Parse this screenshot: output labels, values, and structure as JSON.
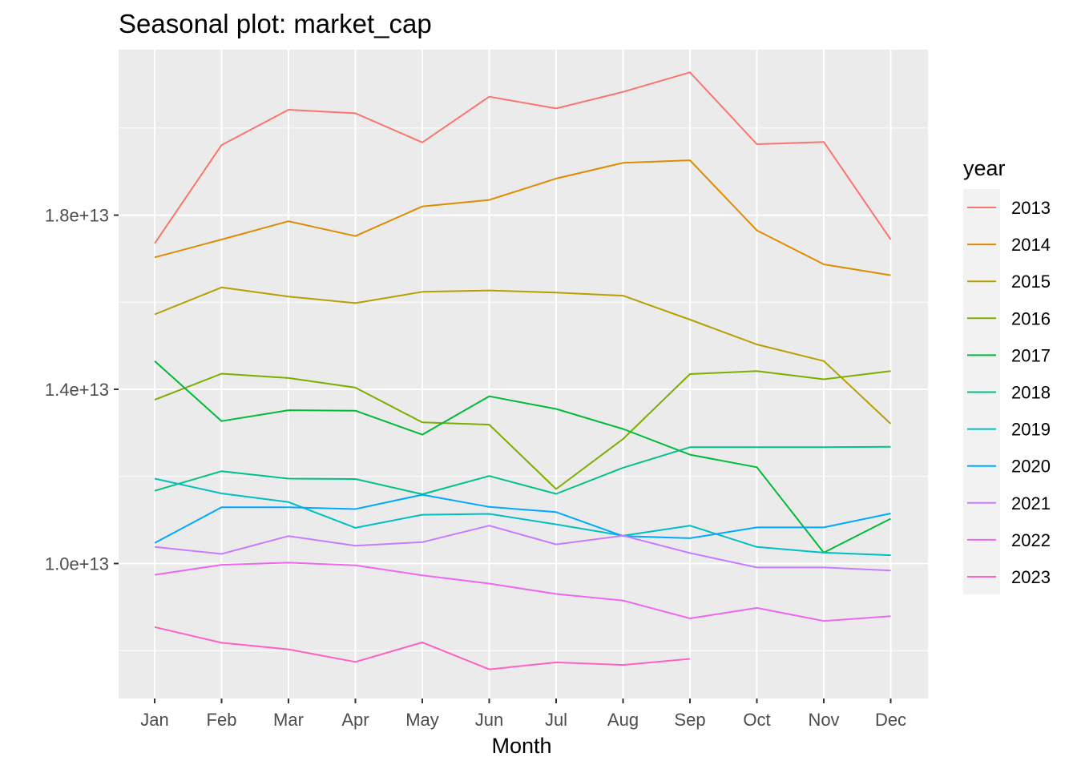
{
  "chart_data": {
    "type": "line",
    "title": "Seasonal plot: market_cap",
    "xlabel": "Month",
    "ylabel": "",
    "categories": [
      "Jan",
      "Feb",
      "Mar",
      "Apr",
      "May",
      "Jun",
      "Jul",
      "Aug",
      "Sep",
      "Oct",
      "Nov",
      "Dec"
    ],
    "ylim": [
      6900000000000.0,
      21800000000000.0
    ],
    "yticks": [
      10000000000000.0,
      14000000000000.0,
      18000000000000.0
    ],
    "ytick_labels": [
      "1.0e+13",
      "1.4e+13",
      "1.8e+13"
    ],
    "grid": true,
    "legend_title": "year",
    "legend_position": "right",
    "series": [
      {
        "name": "2013",
        "color": "#F8766D",
        "values": [
          17350000000000.0,
          19610000000000.0,
          20420000000000.0,
          20340000000000.0,
          19670000000000.0,
          20720000000000.0,
          20450000000000.0,
          20830000000000.0,
          21280000000000.0,
          19630000000000.0,
          19680000000000.0,
          17440000000000.0
        ]
      },
      {
        "name": "2014",
        "color": "#DE8C00",
        "values": [
          17030000000000.0,
          17440000000000.0,
          17860000000000.0,
          17520000000000.0,
          18200000000000.0,
          18350000000000.0,
          18840000000000.0,
          19200000000000.0,
          19260000000000.0,
          17650000000000.0,
          16870000000000.0,
          16620000000000.0
        ]
      },
      {
        "name": "2015",
        "color": "#B79F00",
        "values": [
          15720000000000.0,
          16340000000000.0,
          16130000000000.0,
          15980000000000.0,
          16240000000000.0,
          16270000000000.0,
          16220000000000.0,
          16150000000000.0,
          15600000000000.0,
          15030000000000.0,
          14650000000000.0,
          13210000000000.0
        ]
      },
      {
        "name": "2016",
        "color": "#7CAE00",
        "values": [
          13760000000000.0,
          14360000000000.0,
          14260000000000.0,
          14040000000000.0,
          13240000000000.0,
          13190000000000.0,
          11710000000000.0,
          12860000000000.0,
          14350000000000.0,
          14420000000000.0,
          14230000000000.0,
          14420000000000.0
        ]
      },
      {
        "name": "2017",
        "color": "#00BA38",
        "values": [
          14650000000000.0,
          13270000000000.0,
          13520000000000.0,
          13510000000000.0,
          12960000000000.0,
          13840000000000.0,
          13550000000000.0,
          13090000000000.0,
          12500000000000.0,
          12210000000000.0,
          10250000000000.0,
          11030000000000.0
        ]
      },
      {
        "name": "2018",
        "color": "#00C08B",
        "values": [
          11670000000000.0,
          12120000000000.0,
          11950000000000.0,
          11940000000000.0,
          11590000000000.0,
          12010000000000.0,
          11600000000000.0,
          12200000000000.0,
          12670000000000.0,
          12670000000000.0,
          12670000000000.0,
          12680000000000.0
        ]
      },
      {
        "name": "2019",
        "color": "#00BFC4",
        "values": [
          11950000000000.0,
          11610000000000.0,
          11410000000000.0,
          10820000000000.0,
          11120000000000.0,
          11140000000000.0,
          10900000000000.0,
          10640000000000.0,
          10870000000000.0,
          10380000000000.0,
          10250000000000.0,
          10190000000000.0
        ]
      },
      {
        "name": "2020",
        "color": "#00A9FF",
        "values": [
          10470000000000.0,
          11290000000000.0,
          11290000000000.0,
          11250000000000.0,
          11580000000000.0,
          11300000000000.0,
          11180000000000.0,
          10630000000000.0,
          10580000000000.0,
          10830000000000.0,
          10830000000000.0,
          11150000000000.0
        ]
      },
      {
        "name": "2021",
        "color": "#C77CFF",
        "values": [
          10380000000000.0,
          10220000000000.0,
          10630000000000.0,
          10410000000000.0,
          10490000000000.0,
          10870000000000.0,
          10440000000000.0,
          10640000000000.0,
          10240000000000.0,
          9910000000000.0,
          9910000000000.0,
          9840000000000.0
        ]
      },
      {
        "name": "2022",
        "color": "#ED68ED",
        "values": [
          9740000000000.0,
          9970000000000.0,
          10020000000000.0,
          9960000000000.0,
          9730000000000.0,
          9540000000000.0,
          9300000000000.0,
          9150000000000.0,
          8740000000000.0,
          8980000000000.0,
          8680000000000.0,
          8790000000000.0
        ]
      },
      {
        "name": "2023",
        "color": "#FF61C3",
        "values": [
          8540000000000.0,
          8180000000000.0,
          8030000000000.0,
          7740000000000.0,
          8190000000000.0,
          7570000000000.0,
          7730000000000.0,
          7670000000000.0,
          7810000000000.0,
          null,
          null,
          null
        ]
      }
    ]
  }
}
